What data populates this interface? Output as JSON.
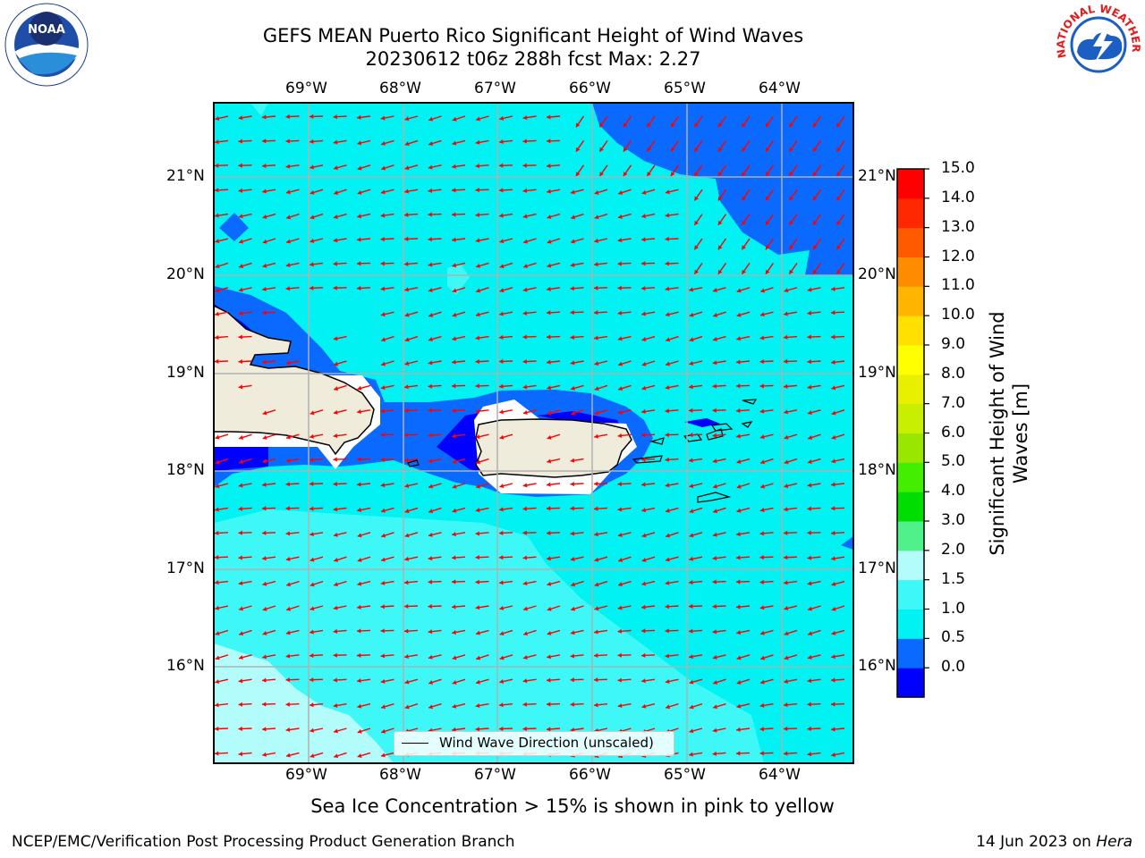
{
  "title": {
    "line1": "GEFS MEAN Puerto Rico Significant Height of Wind Waves",
    "line2": "20230612 t06z 288h fcst   Max: 2.27"
  },
  "logos": {
    "left": "NOAA",
    "right_text": "NATIONAL WEATHER SERVICE"
  },
  "map": {
    "lon_labels": [
      "69°W",
      "68°W",
      "67°W",
      "66°W",
      "65°W",
      "64°W"
    ],
    "lat_labels": [
      "21°N",
      "20°N",
      "19°N",
      "18°N",
      "17°N",
      "16°N"
    ],
    "legend": "Wind Wave Direction (unscaled)",
    "colors": {
      "land": "#efecdc",
      "h_0_0p5": "#0000ff",
      "h_0p5_1": "#0a6aff",
      "h_1_1p5": "#00f2f2",
      "h_1p5_2": "#3ef8f8",
      "h_2_3": "#b3fcfc",
      "arrow": "#ff0000",
      "grid": "#b0b0b0"
    }
  },
  "colorbar": {
    "title": "Significant Height of Wind Waves [m]",
    "ticks": [
      "15.0",
      "14.0",
      "13.0",
      "12.0",
      "11.0",
      "10.0",
      "9.0",
      "8.0",
      "7.0",
      "6.0",
      "5.0",
      "4.0",
      "3.0",
      "2.0",
      "1.5",
      "1.0",
      "0.5",
      "0.0"
    ],
    "bands": [
      "#0000ff",
      "#0a6aff",
      "#00f2f2",
      "#3ef8f8",
      "#b3fcfc",
      "#50f08a",
      "#00dd00",
      "#44ee00",
      "#99e600",
      "#c8ee00",
      "#e8f000",
      "#ffff00",
      "#ffe000",
      "#ffb400",
      "#ff8c00",
      "#ff5a00",
      "#ff2800",
      "#ff0000"
    ]
  },
  "sea_ice_note": "Sea Ice Concentration > 15% is shown in pink to yellow",
  "footer": {
    "left": "NCEP/EMC/Verification Post Processing Product Generation Branch",
    "date": "14 Jun 2023 on ",
    "host": "Hera"
  }
}
